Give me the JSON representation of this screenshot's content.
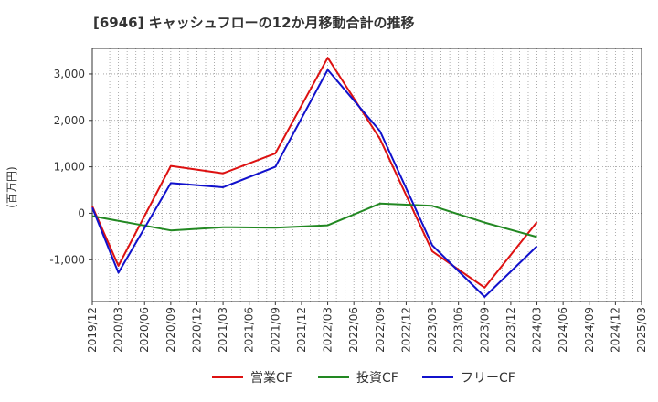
{
  "chart_data": {
    "type": "line",
    "title": "[6946]  キャッシュフローの12か月移動合計の推移",
    "xlabel": "",
    "ylabel": "(百万円)",
    "ylim": [
      -1900,
      3550
    ],
    "yticks": [
      3000,
      2000,
      1000,
      0,
      -1000
    ],
    "ytick_labels": [
      "3,000",
      "2,000",
      "1,000",
      "0",
      "-1,000"
    ],
    "x_ticks": [
      "2019/12",
      "2020/03",
      "2020/06",
      "2020/09",
      "2020/12",
      "2021/03",
      "2021/06",
      "2021/09",
      "2021/12",
      "2022/03",
      "2022/06",
      "2022/09",
      "2022/12",
      "2023/03",
      "2023/06",
      "2023/09",
      "2023/12",
      "2024/03",
      "2024/06",
      "2024/09",
      "2024/12",
      "2025/03"
    ],
    "grid": true,
    "legend_position": "bottom",
    "series": [
      {
        "name": "営業CF",
        "color": "#dd1111",
        "points": [
          [
            "2019/12",
            150
          ],
          [
            "2020/03",
            -1130
          ],
          [
            "2020/09",
            1020
          ],
          [
            "2021/03",
            860
          ],
          [
            "2021/09",
            1290
          ],
          [
            "2022/03",
            3350
          ],
          [
            "2022/09",
            1600
          ],
          [
            "2023/03",
            -820
          ],
          [
            "2023/09",
            -1600
          ],
          [
            "2024/03",
            -190
          ]
        ]
      },
      {
        "name": "投資CF",
        "color": "#228822",
        "points": [
          [
            "2019/12",
            -60
          ],
          [
            "2020/09",
            -370
          ],
          [
            "2021/03",
            -300
          ],
          [
            "2021/09",
            -310
          ],
          [
            "2022/03",
            -260
          ],
          [
            "2022/09",
            210
          ],
          [
            "2023/03",
            160
          ],
          [
            "2023/09",
            -200
          ],
          [
            "2024/03",
            -510
          ]
        ]
      },
      {
        "name": "フリーCF",
        "color": "#1111cc",
        "points": [
          [
            "2019/12",
            120
          ],
          [
            "2020/03",
            -1280
          ],
          [
            "2020/09",
            650
          ],
          [
            "2021/03",
            560
          ],
          [
            "2021/09",
            1000
          ],
          [
            "2022/03",
            3090
          ],
          [
            "2022/09",
            1770
          ],
          [
            "2023/03",
            -690
          ],
          [
            "2023/09",
            -1800
          ],
          [
            "2024/03",
            -710
          ]
        ]
      }
    ]
  }
}
